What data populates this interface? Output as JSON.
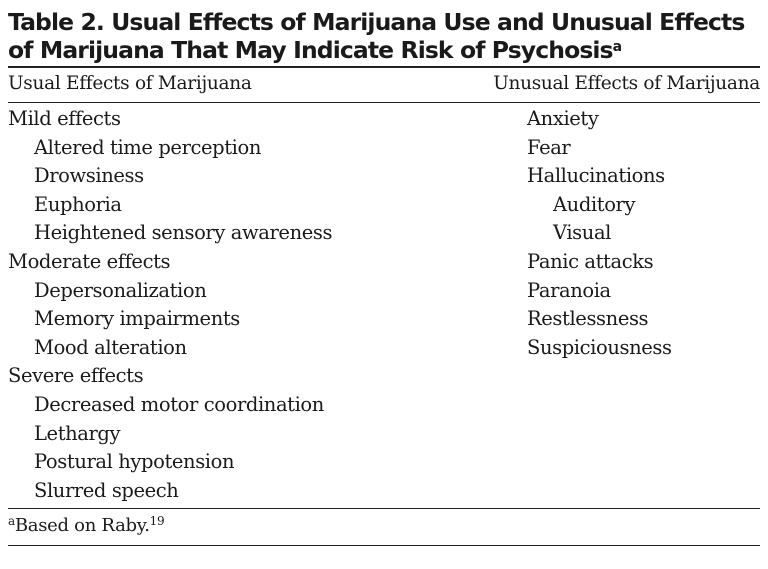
{
  "table": {
    "title_line1": "Table 2. Usual Effects of Marijuana Use and Unusual Effects",
    "title_line2": "of Marijuana That May Indicate Risk of Psychosis",
    "title_marker": "a",
    "column_headers": [
      "Usual Effects of Marijuana",
      "Unusual Effects of Marijuana"
    ],
    "usual_effects": [
      {
        "text": "Mild effects",
        "level": 0
      },
      {
        "text": "Altered time perception",
        "level": 1
      },
      {
        "text": "Drowsiness",
        "level": 1
      },
      {
        "text": "Euphoria",
        "level": 1
      },
      {
        "text": "Heightened sensory awareness",
        "level": 1
      },
      {
        "text": "Moderate effects",
        "level": 0
      },
      {
        "text": "Depersonalization",
        "level": 1
      },
      {
        "text": "Memory impairments",
        "level": 1
      },
      {
        "text": "Mood alteration",
        "level": 1
      },
      {
        "text": "Severe effects",
        "level": 0
      },
      {
        "text": "Decreased motor coordination",
        "level": 1
      },
      {
        "text": "Lethargy",
        "level": 1
      },
      {
        "text": "Postural hypotension",
        "level": 1
      },
      {
        "text": "Slurred speech",
        "level": 1
      }
    ],
    "unusual_effects": [
      {
        "text": "Anxiety",
        "level": 0
      },
      {
        "text": "Fear",
        "level": 0
      },
      {
        "text": "Hallucinations",
        "level": 0
      },
      {
        "text": "Auditory",
        "level": 1
      },
      {
        "text": "Visual",
        "level": 1
      },
      {
        "text": "Panic attacks",
        "level": 0
      },
      {
        "text": "Paranoia",
        "level": 0
      },
      {
        "text": "Restlessness",
        "level": 0
      },
      {
        "text": "Suspiciousness",
        "level": 0
      }
    ],
    "footnote": {
      "marker": "a",
      "text": "Based on Raby.",
      "ref": "19"
    }
  }
}
